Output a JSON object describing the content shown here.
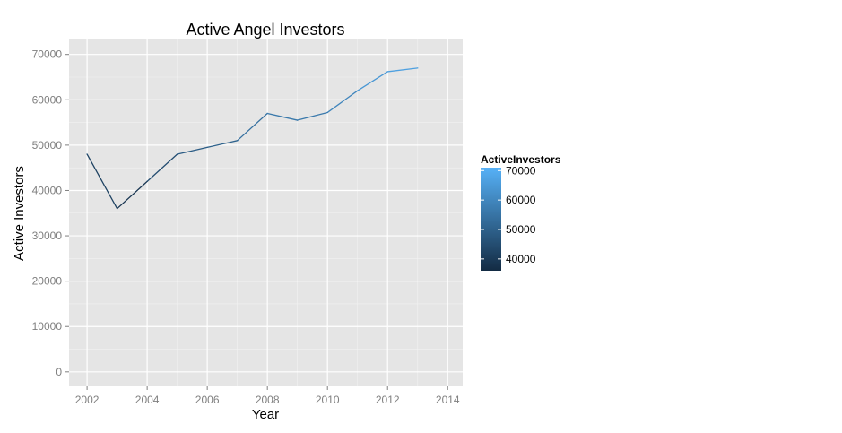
{
  "chart_data": {
    "type": "line",
    "title": "Active Angel Investors",
    "xlabel": "Year",
    "ylabel": "Active Investors",
    "xlim": [
      2001.4,
      2014.5
    ],
    "ylim": [
      -3200,
      73500
    ],
    "x_ticks": [
      2002,
      2004,
      2006,
      2008,
      2010,
      2012,
      2014
    ],
    "y_ticks": [
      0,
      10000,
      20000,
      30000,
      40000,
      50000,
      60000,
      70000
    ],
    "grid": true,
    "series": [
      {
        "x": [
          2002,
          2003,
          2004,
          2005,
          2006,
          2007,
          2008,
          2009,
          2010,
          2011,
          2012,
          2013
        ],
        "values": [
          48000,
          36000,
          42000,
          48000,
          49500,
          51000,
          57000,
          55500,
          57200,
          62000,
          66200,
          67000
        ]
      }
    ],
    "legend": {
      "title": "ActiveInvestors",
      "placement": "right",
      "type": "colorbar",
      "labels": [
        70000,
        60000,
        50000,
        40000
      ],
      "range": [
        36000,
        71000
      ],
      "color_low": "#132B43",
      "color_high": "#56B1F7"
    },
    "panel_background": "#E5E5E5",
    "grid_color": "#FFFFFF"
  }
}
